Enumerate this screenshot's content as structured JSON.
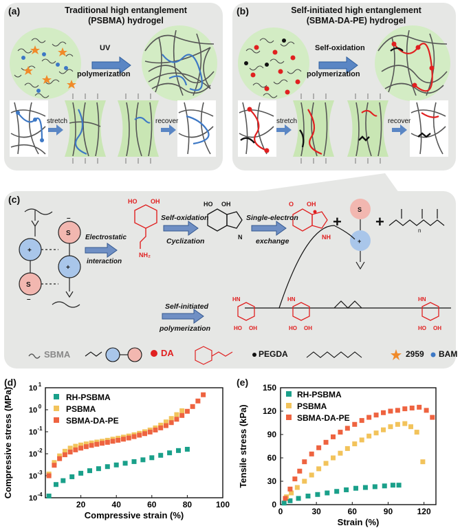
{
  "panel_a": {
    "label": "(a)",
    "title_line1": "Traditional high entanglement",
    "title_line2": "(PSBMA) hydrogel",
    "arrow_top": "UV",
    "arrow_bottom": "polymerization",
    "stretch": "stretch",
    "recover": "recover"
  },
  "panel_b": {
    "label": "(b)",
    "title_line1": "Self-initiated high entanglement",
    "title_line2": "(SBMA-DA-PE) hydrogel",
    "arrow_top": "Self-oxidation",
    "arrow_bottom": "polymerization",
    "stretch": "stretch",
    "recover": "recover"
  },
  "panel_c": {
    "label": "(c)",
    "electrostatic": "Electrostatic",
    "interaction": "interaction",
    "self_oxidation": "Self-oxidation",
    "cyclization": "Cyclization",
    "single_electron": "Single-electron",
    "exchange": "exchange",
    "self_initiated": "Self-initiated",
    "polymerization": "polymerization",
    "legend": {
      "sbma": "SBMA",
      "da": "DA",
      "pegda": "PEGDA",
      "i2959": "2959",
      "bam": "BAM"
    }
  },
  "colors": {
    "panel_bg": "#e6e7e5",
    "gel_green": "#d3ecc4",
    "red": "#e02020",
    "blue": "#3d78c5",
    "star_orange": "#f08a2a",
    "teal": "#1aa08a",
    "yellow": "#f2c35b",
    "orange": "#ee6340"
  },
  "chart_d": {
    "label": "(d)",
    "xlabel": "Compressive strain (%)",
    "ylabel": "Compressive stress (MPa)",
    "xticks": [
      "20",
      "40",
      "60",
      "80",
      "100"
    ],
    "yticks": [
      "10",
      "10",
      "10",
      "10",
      "10",
      "10"
    ],
    "yexp": [
      "-4",
      "-3",
      "-2",
      "-1",
      "0",
      "1"
    ]
  },
  "chart_e": {
    "label": "(e)",
    "xlabel": "Strain (%)",
    "ylabel": "Tensile stress (kPa)",
    "xticks": [
      "0",
      "30",
      "60",
      "90",
      "120"
    ],
    "yticks": [
      "0",
      "30",
      "60",
      "90",
      "120",
      "150"
    ]
  },
  "chart_data": [
    {
      "type": "scatter",
      "xlabel": "Compressive strain (%)",
      "ylabel": "Compressive stress (MPa)",
      "xlim": [
        0,
        100
      ],
      "ylim_log10": [
        -4,
        1
      ],
      "yscale": "log",
      "legend": "top-left",
      "series": [
        {
          "name": "RH-PSBMA",
          "color": "#1aa08a",
          "x": [
            2,
            6,
            10,
            15,
            20,
            25,
            30,
            35,
            40,
            45,
            50,
            55,
            60,
            65,
            70,
            75,
            80
          ],
          "y": [
            0.00012,
            0.0004,
            0.0006,
            0.0009,
            0.0013,
            0.0017,
            0.0021,
            0.0026,
            0.0031,
            0.0037,
            0.0044,
            0.0053,
            0.0066,
            0.0085,
            0.011,
            0.014,
            0.016
          ]
        },
        {
          "name": "PSBMA",
          "color": "#f2c35b",
          "x": [
            2,
            5,
            8,
            11,
            14,
            17,
            20,
            23,
            26,
            29,
            32,
            35,
            38,
            41,
            44,
            47,
            50,
            53,
            56,
            59,
            62,
            65,
            68,
            71,
            74,
            77
          ],
          "y": [
            0.0012,
            0.004,
            0.008,
            0.013,
            0.018,
            0.022,
            0.025,
            0.028,
            0.031,
            0.034,
            0.037,
            0.041,
            0.046,
            0.051,
            0.057,
            0.064,
            0.073,
            0.085,
            0.1,
            0.12,
            0.15,
            0.2,
            0.28,
            0.4,
            0.6,
            0.9
          ]
        },
        {
          "name": "SBMA-DA-PE",
          "color": "#ee6340",
          "x": [
            2,
            5,
            8,
            11,
            14,
            17,
            20,
            23,
            26,
            29,
            32,
            35,
            38,
            41,
            44,
            47,
            50,
            53,
            56,
            59,
            62,
            65,
            68,
            71,
            74,
            77,
            80,
            83,
            86,
            89
          ],
          "y": [
            0.001,
            0.003,
            0.006,
            0.009,
            0.012,
            0.015,
            0.018,
            0.021,
            0.024,
            0.027,
            0.03,
            0.033,
            0.037,
            0.041,
            0.046,
            0.052,
            0.06,
            0.07,
            0.082,
            0.097,
            0.12,
            0.15,
            0.19,
            0.26,
            0.37,
            0.55,
            0.85,
            1.4,
            2.5,
            4.8
          ]
        }
      ]
    },
    {
      "type": "scatter",
      "xlabel": "Strain (%)",
      "ylabel": "Tensile stress (kPa)",
      "xlim": [
        0,
        130
      ],
      "ylim": [
        0,
        150
      ],
      "legend": "top-left",
      "series": [
        {
          "name": "RH-PSBMA",
          "color": "#1aa08a",
          "x": [
            3,
            8,
            15,
            23,
            31,
            39,
            47,
            55,
            63,
            71,
            79,
            87,
            94,
            99
          ],
          "y": [
            2,
            5,
            8,
            11,
            13,
            15,
            17,
            19,
            21,
            22,
            23,
            24,
            25,
            25
          ]
        },
        {
          "name": "PSBMA",
          "color": "#f2c35b",
          "x": [
            5,
            9,
            14,
            20,
            26,
            32,
            38,
            44,
            50,
            56,
            62,
            68,
            74,
            80,
            86,
            92,
            98,
            104,
            109,
            114,
            119
          ],
          "y": [
            10,
            15,
            22,
            30,
            38,
            46,
            53,
            60,
            66,
            72,
            78,
            83,
            88,
            92,
            96,
            100,
            103,
            104,
            100,
            93,
            55
          ]
        },
        {
          "name": "SBMA-DA-PE",
          "color": "#ee6340",
          "x": [
            4,
            8,
            12,
            16,
            20,
            26,
            32,
            38,
            44,
            50,
            56,
            62,
            68,
            74,
            80,
            86,
            92,
            98,
            104,
            110,
            116,
            122,
            127
          ],
          "y": [
            8,
            20,
            33,
            43,
            55,
            65,
            73,
            80,
            87,
            93,
            98,
            103,
            108,
            112,
            115,
            118,
            120,
            121,
            123,
            124,
            125,
            121,
            112
          ]
        }
      ]
    }
  ]
}
